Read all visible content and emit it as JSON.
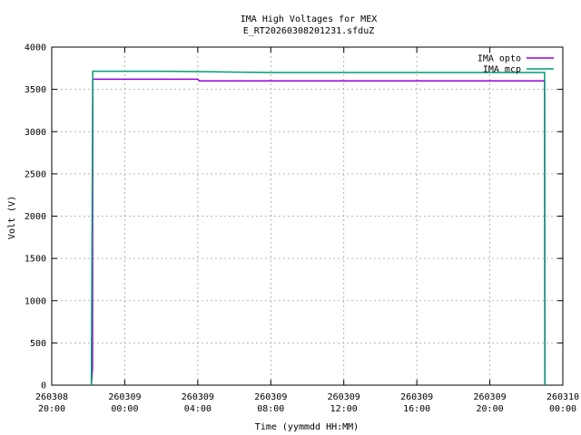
{
  "chart_data": {
    "type": "line",
    "title": "IMA High Voltages for MEX",
    "subtitle": "E_RT20260308201231.sfduZ",
    "x_label": "Time (yymmdd HH:MM)",
    "y_label": "Volt (V)",
    "series": [
      {
        "name": "IMA opto",
        "color": "#9400d3",
        "x": [
          "260308 22:10",
          "260308 22:12",
          "260308 22:14",
          "260308 22:15",
          "260309 04:00",
          "260309 04:05",
          "260309 12:00",
          "260309 23:00",
          "260309 23:01"
        ],
        "values": [
          0,
          100,
          200,
          3620,
          3620,
          3600,
          3600,
          3600,
          0
        ]
      },
      {
        "name": "IMA mcp",
        "color": "#009e73",
        "x": [
          "260308 22:10",
          "260308 22:15",
          "260309 02:00",
          "260309 04:00",
          "260309 08:00",
          "260309 16:00",
          "260309 23:00",
          "260309 23:01"
        ],
        "values": [
          0,
          3715,
          3715,
          3710,
          3700,
          3700,
          3700,
          0
        ]
      }
    ],
    "xlim": [
      "260308 20:00",
      "260310 00:00"
    ],
    "xticks": [
      "260308 20:00",
      "260309 00:00",
      "260309 04:00",
      "260309 08:00",
      "260309 12:00",
      "260309 16:00",
      "260309 20:00",
      "260310 00:00"
    ],
    "ylim": [
      0,
      4000
    ],
    "yticks": [
      0,
      500,
      1000,
      1500,
      2000,
      2500,
      3000,
      3500,
      4000
    ],
    "grid": true,
    "legend": "top-right"
  }
}
